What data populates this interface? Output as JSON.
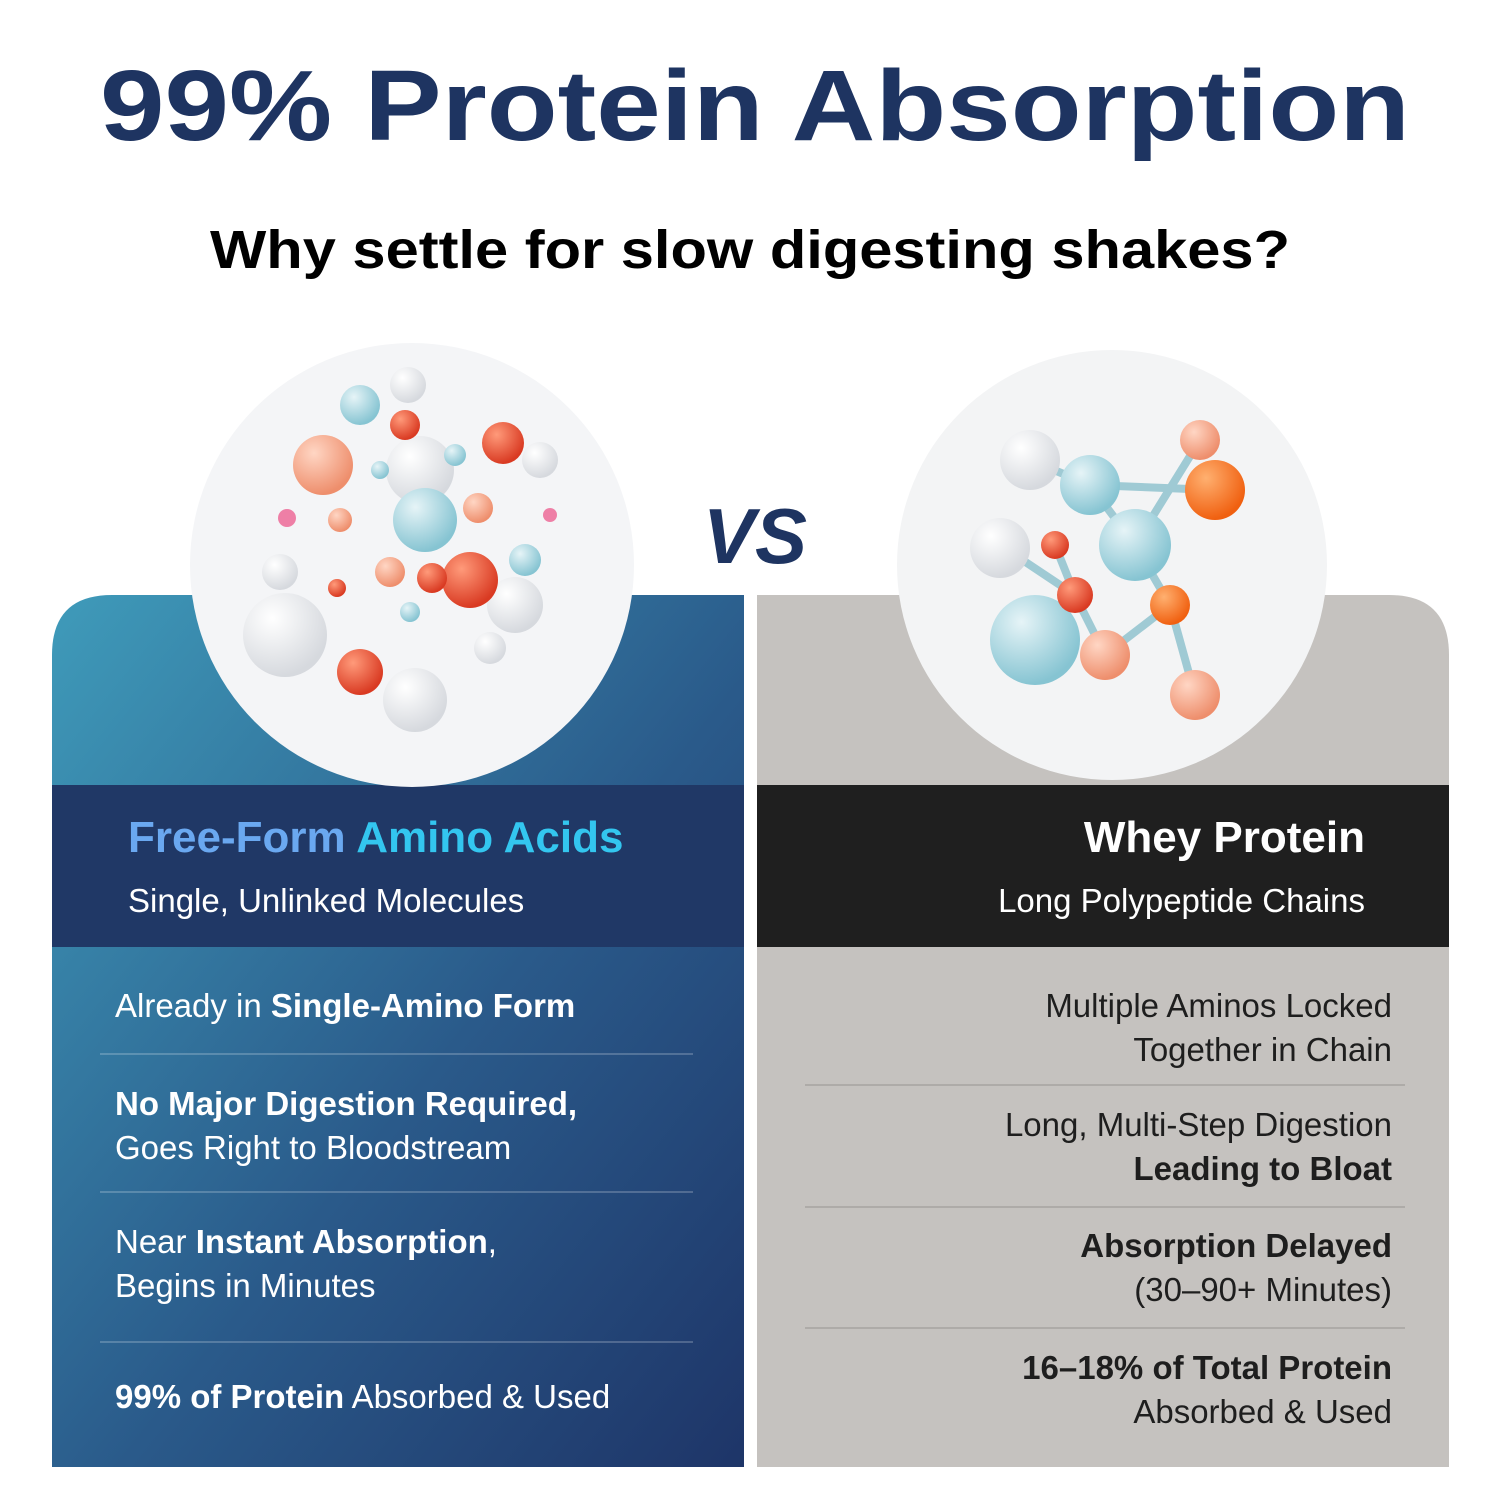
{
  "header": {
    "title": "99% Protein Absorption",
    "subtitle": "Why settle for slow digesting shakes?",
    "vs": "VS"
  },
  "columns": [
    {
      "heading": [
        {
          "text": "Free-Form ",
          "color": "#6aa8f0"
        },
        {
          "text": "Amino Acids",
          "color": "#33c6ef"
        }
      ],
      "subheading": "Single, Unlinked Molecules",
      "items": [
        {
          "lines": [
            [
              {
                "text": "Already in ",
                "bold": false
              },
              {
                "text": "Single-Amino Form",
                "bold": true
              }
            ]
          ]
        },
        {
          "lines": [
            [
              {
                "text": "No Major Digestion Required,",
                "bold": true
              }
            ],
            [
              {
                "text": "Goes Right to Bloodstream",
                "bold": false
              }
            ]
          ]
        },
        {
          "lines": [
            [
              {
                "text": "Near ",
                "bold": false
              },
              {
                "text": "Instant Absorption",
                "bold": true
              },
              {
                "text": ",",
                "bold": false
              }
            ],
            [
              {
                "text": "Begins in Minutes",
                "bold": false
              }
            ]
          ]
        },
        {
          "lines": [
            [
              {
                "text": "99% of Protein",
                "bold": true
              },
              {
                "text": " Absorbed & Used",
                "bold": false
              }
            ]
          ]
        }
      ]
    },
    {
      "heading": [
        {
          "text": "Whey Protein",
          "color": "#ffffff"
        }
      ],
      "subheading": "Long Polypeptide Chains",
      "items": [
        {
          "lines": [
            [
              {
                "text": "Multiple Aminos Locked",
                "bold": false
              }
            ],
            [
              {
                "text": "Together in Chain",
                "bold": false
              }
            ]
          ]
        },
        {
          "lines": [
            [
              {
                "text": "Long, Multi-Step Digestion",
                "bold": false
              }
            ],
            [
              {
                "text": "Leading to Bloat",
                "bold": true
              }
            ]
          ]
        },
        {
          "lines": [
            [
              {
                "text": "Absorption Delayed",
                "bold": true
              }
            ],
            [
              {
                "text": "(30–90+ Minutes)",
                "bold": false
              }
            ]
          ]
        },
        {
          "lines": [
            [
              {
                "text": "16–18% of Total Protein",
                "bold": true
              }
            ],
            [
              {
                "text": "Absorbed & Used",
                "bold": false
              }
            ]
          ]
        }
      ]
    }
  ]
}
